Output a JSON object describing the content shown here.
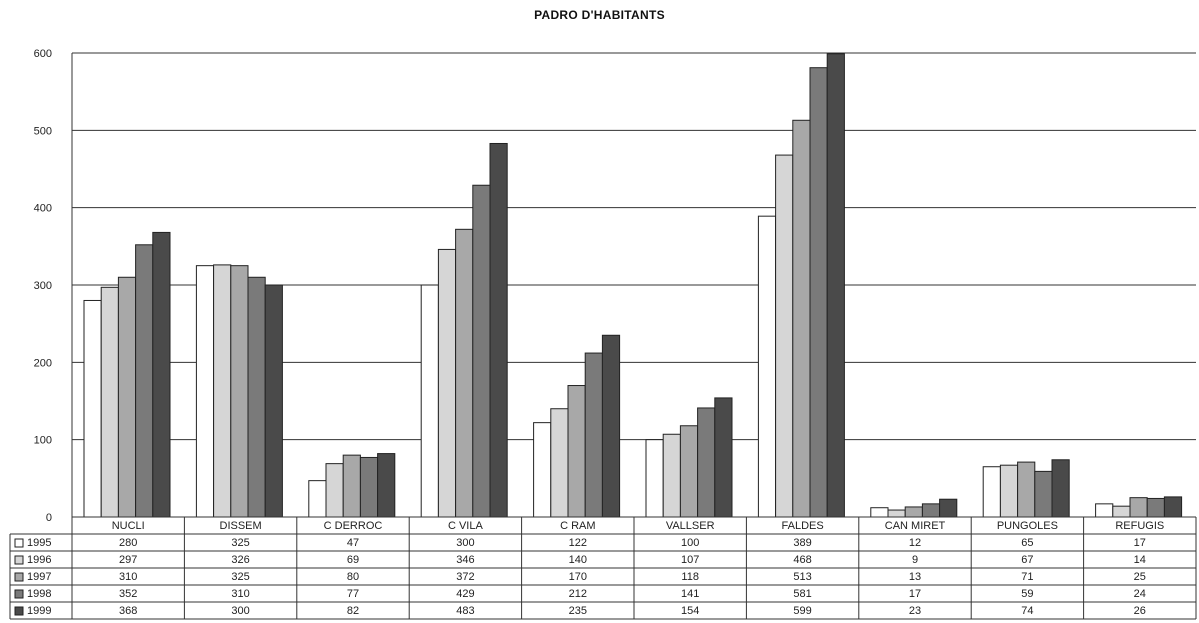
{
  "chart_data": {
    "type": "bar",
    "title": "PADRO D'HABITANTS",
    "categories": [
      "NUCLI",
      "DISSEM",
      "C DERROC",
      "C VILA",
      "C RAM",
      "VALLSER",
      "FALDES",
      "CAN MIRET",
      "PUNGOLES",
      "REFUGIS"
    ],
    "series": [
      {
        "name": "1995",
        "color": "#ffffff",
        "values": [
          280,
          325,
          47,
          300,
          122,
          100,
          389,
          12,
          65,
          17
        ]
      },
      {
        "name": "1996",
        "color": "#d6d6d6",
        "values": [
          297,
          326,
          69,
          346,
          140,
          107,
          468,
          9,
          67,
          14
        ]
      },
      {
        "name": "1997",
        "color": "#a8a8a8",
        "values": [
          310,
          325,
          80,
          372,
          170,
          118,
          513,
          13,
          71,
          25
        ]
      },
      {
        "name": "1998",
        "color": "#7a7a7a",
        "values": [
          352,
          310,
          77,
          429,
          212,
          141,
          581,
          17,
          59,
          24
        ]
      },
      {
        "name": "1999",
        "color": "#4a4a4a",
        "values": [
          368,
          300,
          82,
          483,
          235,
          154,
          599,
          23,
          74,
          26
        ]
      }
    ],
    "yticks": [
      "0",
      "100",
      "200",
      "300",
      "400",
      "500",
      "600"
    ],
    "ylim": [
      0,
      600
    ],
    "grid": true,
    "legend": "data-table"
  }
}
